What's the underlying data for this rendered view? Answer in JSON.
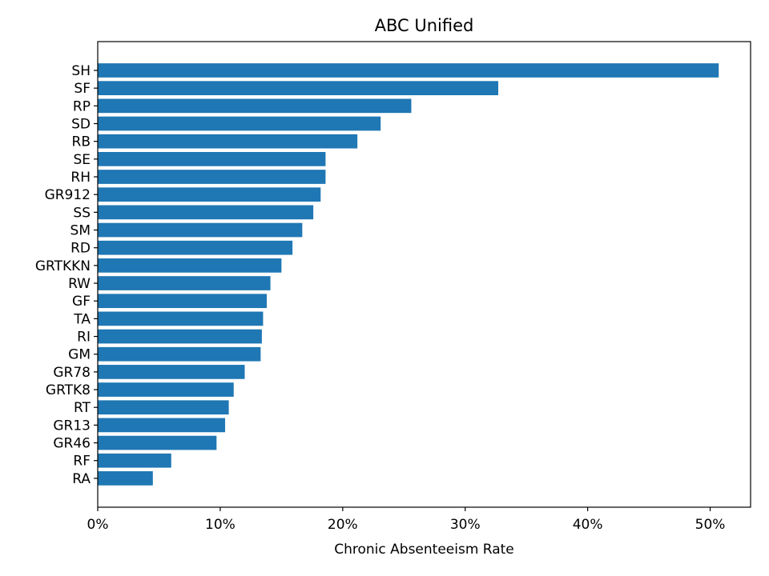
{
  "chart_data": {
    "type": "bar",
    "orientation": "horizontal",
    "title": "ABC Unified",
    "xlabel": "Chronic Absenteeism Rate",
    "ylabel": "",
    "xlim": [
      0,
      53.3
    ],
    "x_ticks": [
      0,
      10,
      20,
      30,
      40,
      50
    ],
    "x_tick_labels": [
      "0%",
      "10%",
      "20%",
      "30%",
      "40%",
      "50%"
    ],
    "categories": [
      "SH",
      "SF",
      "RP",
      "SD",
      "RB",
      "SE",
      "RH",
      "GR912",
      "SS",
      "SM",
      "RD",
      "GRTKKN",
      "RW",
      "GF",
      "TA",
      "RI",
      "GM",
      "GR78",
      "GRTK8",
      "RT",
      "GR13",
      "GR46",
      "RF",
      "RA"
    ],
    "values": [
      50.7,
      32.7,
      25.6,
      23.1,
      21.2,
      18.6,
      18.6,
      18.2,
      17.6,
      16.7,
      15.9,
      15.0,
      14.1,
      13.8,
      13.5,
      13.4,
      13.3,
      12.0,
      11.1,
      10.7,
      10.4,
      9.7,
      6.0,
      4.5
    ],
    "bar_color": "#1f77b4",
    "grid": false,
    "legend": "none"
  }
}
